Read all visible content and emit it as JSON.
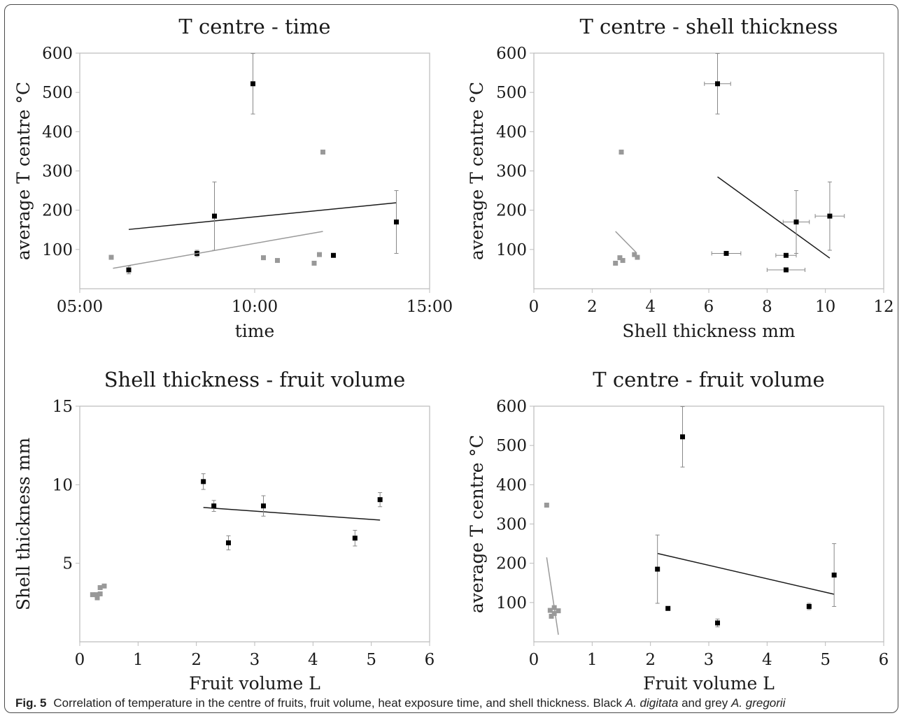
{
  "caption": {
    "label": "Fig. 5",
    "text_before": "Correlation of temperature in the centre of fruits, fruit volume, heat exposure time, and shell thickness. Black ",
    "species1": "A. digitata",
    "text_middle": " and grey ",
    "species2": "A. gregorii"
  },
  "colors": {
    "digitata": "#000000",
    "gregorii": "#999999",
    "axis": "#bbbbbb"
  },
  "chart_data": [
    {
      "id": "tc_time",
      "type": "scatter",
      "title": "T centre -  time",
      "xlabel": "time",
      "ylabel": "average T centre °C",
      "xlim": [
        5,
        15
      ],
      "ylim": [
        0,
        600
      ],
      "xticks": [
        5,
        10,
        15
      ],
      "xtick_labels": [
        "05:00",
        "10:00",
        "15:00"
      ],
      "yticks": [
        100,
        200,
        300,
        400,
        500,
        600
      ],
      "ytick_labels": [
        "100",
        "200",
        "300",
        "400",
        "500",
        "600"
      ],
      "series": [
        {
          "color": "#000000",
          "points": [
            {
              "x": 6.4,
              "y": 48,
              "yerr": 10
            },
            {
              "x": 8.35,
              "y": 90,
              "yerr": 8
            },
            {
              "x": 8.85,
              "y": 185,
              "yerr": 87
            },
            {
              "x": 9.95,
              "y": 522,
              "yerr": 77
            },
            {
              "x": 12.25,
              "y": 85
            },
            {
              "x": 14.05,
              "y": 170,
              "yerr": 80
            }
          ],
          "trend": [
            [
              6.4,
              151
            ],
            [
              14.05,
              219
            ]
          ]
        },
        {
          "color": "#999999",
          "points": [
            {
              "x": 5.9,
              "y": 80
            },
            {
              "x": 10.25,
              "y": 79
            },
            {
              "x": 10.65,
              "y": 72
            },
            {
              "x": 11.7,
              "y": 65
            },
            {
              "x": 11.85,
              "y": 87
            },
            {
              "x": 11.95,
              "y": 348
            }
          ],
          "trend": [
            [
              5.95,
              52
            ],
            [
              11.95,
              146
            ]
          ]
        }
      ]
    },
    {
      "id": "tc_shell",
      "type": "scatter",
      "title": "T centre - shell thickness",
      "xlabel": "Shell thickness mm",
      "ylabel": "average T centre °C",
      "xlim": [
        0,
        12
      ],
      "ylim": [
        0,
        600
      ],
      "xticks": [
        0,
        2,
        4,
        6,
        8,
        10,
        12
      ],
      "xtick_labels": [
        "0",
        "2",
        "4",
        "6",
        "8",
        "10",
        "12"
      ],
      "yticks": [
        100,
        200,
        300,
        400,
        500,
        600
      ],
      "ytick_labels": [
        "100",
        "200",
        "300",
        "400",
        "500",
        "600"
      ],
      "series": [
        {
          "color": "#000000",
          "points": [
            {
              "x": 6.3,
              "y": 522,
              "xerr": 0.45,
              "yerr": 77
            },
            {
              "x": 6.6,
              "y": 90,
              "xerr": 0.5
            },
            {
              "x": 8.65,
              "y": 85,
              "xerr": 0.35
            },
            {
              "x": 8.65,
              "y": 48,
              "xerr": 0.65
            },
            {
              "x": 9.0,
              "y": 170,
              "xerr": 0.45,
              "yerr": 80
            },
            {
              "x": 10.15,
              "y": 185,
              "xerr": 0.5,
              "yerr": 87
            }
          ],
          "trend": [
            [
              6.3,
              285
            ],
            [
              10.15,
              78
            ]
          ]
        },
        {
          "color": "#999999",
          "points": [
            {
              "x": 2.8,
              "y": 65
            },
            {
              "x": 2.95,
              "y": 79
            },
            {
              "x": 3.0,
              "y": 348
            },
            {
              "x": 3.05,
              "y": 72
            },
            {
              "x": 3.45,
              "y": 87
            },
            {
              "x": 3.55,
              "y": 80
            }
          ],
          "trend": [
            [
              2.8,
              146
            ],
            [
              3.5,
              93
            ]
          ]
        }
      ]
    },
    {
      "id": "shell_vol",
      "type": "scatter",
      "title": "Shell thickness - fruit volume",
      "xlabel": "Fruit volume L",
      "ylabel": "Shell thickness mm",
      "xlim": [
        0,
        6
      ],
      "ylim": [
        0,
        15
      ],
      "xticks": [
        0,
        1,
        2,
        3,
        4,
        5,
        6
      ],
      "xtick_labels": [
        "0",
        "1",
        "2",
        "3",
        "4",
        "5",
        "6"
      ],
      "yticks": [
        5,
        10,
        15
      ],
      "ytick_labels": [
        "5",
        "10",
        "15"
      ],
      "series": [
        {
          "color": "#000000",
          "points": [
            {
              "x": 2.12,
              "y": 10.2,
              "yerr": 0.5
            },
            {
              "x": 2.3,
              "y": 8.65,
              "yerr": 0.35
            },
            {
              "x": 2.55,
              "y": 6.3,
              "yerr": 0.45
            },
            {
              "x": 3.15,
              "y": 8.65,
              "yerr": 0.65
            },
            {
              "x": 4.72,
              "y": 6.6,
              "yerr": 0.5
            },
            {
              "x": 5.15,
              "y": 9.05,
              "yerr": 0.45
            }
          ],
          "trend": [
            [
              2.12,
              8.55
            ],
            [
              5.15,
              7.75
            ]
          ]
        },
        {
          "color": "#999999",
          "points": [
            {
              "x": 0.22,
              "y": 3.0
            },
            {
              "x": 0.28,
              "y": 3.0
            },
            {
              "x": 0.3,
              "y": 2.8
            },
            {
              "x": 0.35,
              "y": 3.05
            },
            {
              "x": 0.35,
              "y": 3.45
            },
            {
              "x": 0.42,
              "y": 3.55
            }
          ]
        }
      ]
    },
    {
      "id": "tc_vol",
      "type": "scatter",
      "title": "T centre - fruit volume",
      "xlabel": "Fruit volume L",
      "ylabel": "average T centre °C",
      "xlim": [
        0,
        6
      ],
      "ylim": [
        0,
        600
      ],
      "xticks": [
        0,
        1,
        2,
        3,
        4,
        5,
        6
      ],
      "xtick_labels": [
        "0",
        "1",
        "2",
        "3",
        "4",
        "5",
        "6"
      ],
      "yticks": [
        100,
        200,
        300,
        400,
        500,
        600
      ],
      "ytick_labels": [
        "100",
        "200",
        "300",
        "400",
        "500",
        "600"
      ],
      "series": [
        {
          "color": "#000000",
          "points": [
            {
              "x": 2.12,
              "y": 185,
              "yerr": 87
            },
            {
              "x": 2.3,
              "y": 85
            },
            {
              "x": 2.55,
              "y": 522,
              "yerr": 77
            },
            {
              "x": 3.15,
              "y": 48,
              "yerr": 10
            },
            {
              "x": 4.72,
              "y": 90,
              "yerr": 8
            },
            {
              "x": 5.15,
              "y": 170,
              "yerr": 80
            }
          ],
          "trend": [
            [
              2.12,
              225
            ],
            [
              5.15,
              121
            ]
          ]
        },
        {
          "color": "#999999",
          "points": [
            {
              "x": 0.22,
              "y": 348
            },
            {
              "x": 0.28,
              "y": 80
            },
            {
              "x": 0.3,
              "y": 65
            },
            {
              "x": 0.35,
              "y": 72
            },
            {
              "x": 0.35,
              "y": 87
            },
            {
              "x": 0.42,
              "y": 79
            }
          ],
          "trend": [
            [
              0.22,
              215
            ],
            [
              0.42,
              18
            ]
          ]
        }
      ]
    }
  ]
}
